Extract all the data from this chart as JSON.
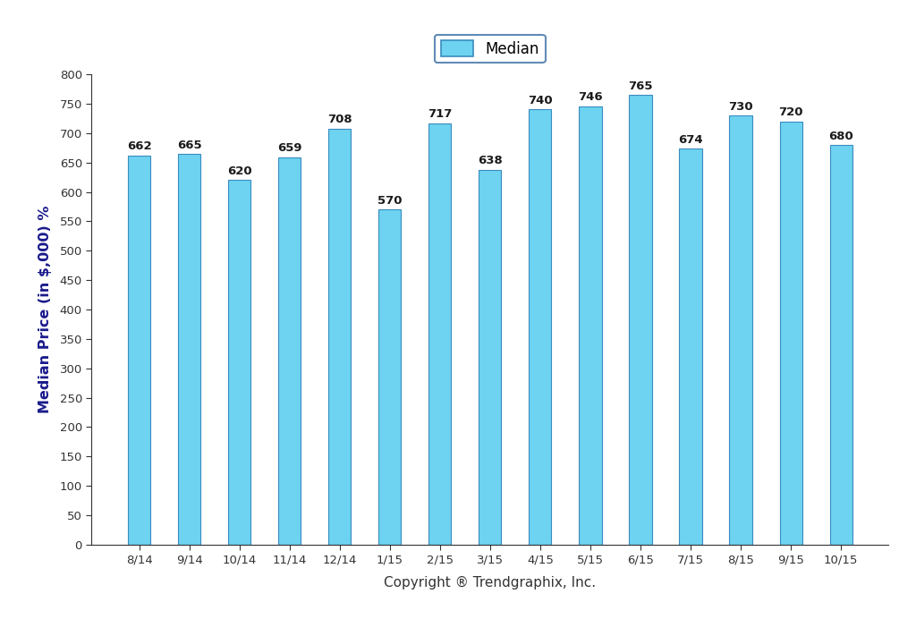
{
  "categories": [
    "8/14",
    "9/14",
    "10/14",
    "11/14",
    "12/14",
    "1/15",
    "2/15",
    "3/15",
    "4/15",
    "5/15",
    "6/15",
    "7/15",
    "8/15",
    "9/15",
    "10/15"
  ],
  "values": [
    662,
    665,
    620,
    659,
    708,
    570,
    717,
    638,
    740,
    746,
    765,
    674,
    730,
    720,
    680
  ],
  "bar_color": "#6DD3F0",
  "bar_edge_color": "#3A8BBF",
  "ylabel": "Median Price (in $,000) %",
  "xlabel": "Copyright ® Trendgraphix, Inc.",
  "ylim": [
    0,
    800
  ],
  "yticks": [
    0,
    50,
    100,
    150,
    200,
    250,
    300,
    350,
    400,
    450,
    500,
    550,
    600,
    650,
    700,
    750,
    800
  ],
  "legend_label": "Median",
  "legend_facecolor": "#6DD3F0",
  "legend_edgecolor": "#3A8BBF",
  "bar_width": 0.45,
  "value_fontsize": 9.5,
  "axis_label_fontsize": 11.5,
  "tick_fontsize": 9.5,
  "background_color": "#FFFFFF",
  "spine_color": "#333333",
  "tick_color": "#333333",
  "label_color": "#1a1a8c",
  "value_color": "#1a1a1a"
}
